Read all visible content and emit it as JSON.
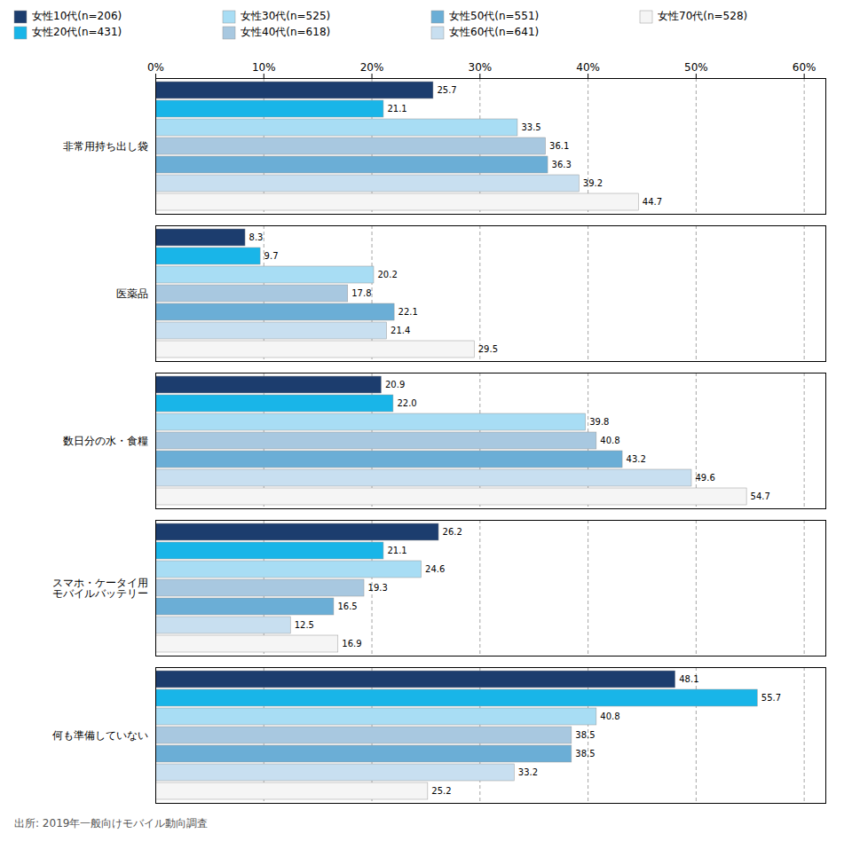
{
  "chart_data": {
    "type": "bar",
    "orientation": "horizontal",
    "categories": [
      "非常用持ち出し袋",
      "医薬品",
      "数日分の水・食糧",
      "スマホ・ケータイ用\nモバイルバッテリー",
      "何も準備していない"
    ],
    "series": [
      {
        "name": "女性10代(n=206)",
        "color": "#1c3d6e",
        "values": [
          25.7,
          8.3,
          20.9,
          26.2,
          48.1
        ]
      },
      {
        "name": "女性20代(n=431)",
        "color": "#19b5e8",
        "values": [
          21.1,
          9.7,
          22.0,
          21.1,
          55.7
        ],
        "value_labels": [
          "21.1",
          "9.7",
          "22.0",
          "21.1",
          "55.7"
        ]
      },
      {
        "name": "女性30代(n=525)",
        "color": "#a8ddf4",
        "values": [
          33.5,
          20.2,
          39.8,
          24.6,
          40.8
        ]
      },
      {
        "name": "女性40代(n=618)",
        "color": "#a8c8e0",
        "values": [
          36.1,
          17.8,
          40.8,
          19.3,
          38.5
        ]
      },
      {
        "name": "女性50代(n=551)",
        "color": "#6baed6",
        "values": [
          36.3,
          22.1,
          43.2,
          16.5,
          38.5
        ]
      },
      {
        "name": "女性60代(n=641)",
        "color": "#c8dff0",
        "values": [
          39.2,
          21.4,
          49.6,
          12.5,
          33.2
        ]
      },
      {
        "name": "女性70代(n=528)",
        "color": "#f5f5f5",
        "values": [
          44.7,
          29.5,
          54.7,
          16.9,
          25.2
        ]
      }
    ],
    "xlim": [
      0,
      62
    ],
    "xticks": [
      {
        "value": 0,
        "label": "0%"
      },
      {
        "value": 10,
        "label": "10%"
      },
      {
        "value": 20,
        "label": "20%"
      },
      {
        "value": 30,
        "label": "30%"
      },
      {
        "value": 40,
        "label": "40%"
      },
      {
        "value": 50,
        "label": "50%"
      },
      {
        "value": 60,
        "label": "60%"
      }
    ],
    "grid": true,
    "legend": "upper left",
    "data_labels": true,
    "annotations": [
      "出所: 2019年一般向けモバイル動向調査"
    ]
  }
}
